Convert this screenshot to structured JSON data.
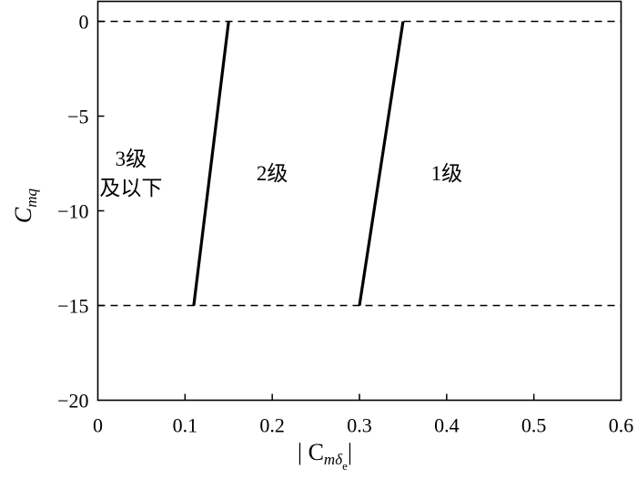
{
  "chart_data": {
    "type": "line",
    "xlabel_parts": {
      "prefix": "| C",
      "sub": "mδ",
      "subsub": "e",
      "suffix": "|"
    },
    "ylabel_parts": {
      "main": "C",
      "sub": "mq"
    },
    "xlim": [
      0,
      0.6
    ],
    "ylim": [
      -20,
      1.1
    ],
    "xticks": [
      0,
      0.1,
      0.2,
      0.3,
      0.4,
      0.5,
      0.6
    ],
    "xtick_labels": [
      "0",
      "0.1",
      "0.2",
      "0.3",
      "0.4",
      "0.5",
      "0.6"
    ],
    "yticks": [
      0,
      -5,
      -10,
      -15,
      -20
    ],
    "ytick_labels": [
      "0",
      "−5",
      "−10",
      "−15",
      "−20"
    ],
    "grid": false,
    "reference_lines": [
      {
        "y": 0,
        "style": "dashed"
      },
      {
        "y": -15,
        "style": "dashed"
      }
    ],
    "series": [
      {
        "x": [
          0.11,
          0.15
        ],
        "y": [
          -15,
          0
        ],
        "style": "solid"
      },
      {
        "x": [
          0.3,
          0.35
        ],
        "y": [
          -15,
          0
        ],
        "style": "solid"
      }
    ],
    "annotations": [
      {
        "lines": [
          "3级",
          "及以下"
        ],
        "x": 0.04,
        "y": -8
      },
      {
        "lines": [
          "2级"
        ],
        "x": 0.2,
        "y": -8
      },
      {
        "lines": [
          "1级"
        ],
        "x": 0.4,
        "y": -8
      }
    ],
    "color": "#000000"
  }
}
